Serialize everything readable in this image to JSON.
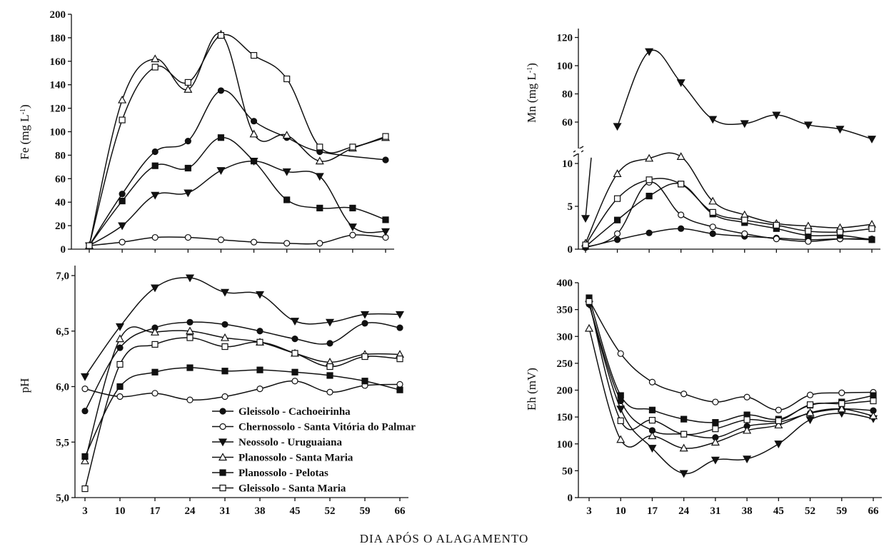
{
  "figure": {
    "xlabel": "DIA APÓS O ALAGAMENTO",
    "x_ticks": [
      "3",
      "10",
      "17",
      "24",
      "31",
      "38",
      "45",
      "52",
      "59",
      "66"
    ],
    "legend": [
      {
        "name": "Gleissolo - Cachoeirinha",
        "marker": "filled-circle"
      },
      {
        "name": "Chernossolo -  Santa Vitória do Palmar",
        "marker": "open-circle"
      },
      {
        "name": "Neossolo - Uruguaiana",
        "marker": "filled-triangle-down"
      },
      {
        "name": "Planossolo - Santa Maria",
        "marker": "open-triangle-up"
      },
      {
        "name": "Planossolo - Pelotas",
        "marker": "filled-square"
      },
      {
        "name": "Gleissolo - Santa Maria",
        "marker": "open-square"
      }
    ]
  },
  "chart_data": [
    {
      "type": "line",
      "panel": "Fe",
      "ylabel": "Fe (mg L",
      "ylim": [
        0,
        200
      ],
      "y_ticks": [
        "0",
        "20",
        "40",
        "60",
        "80",
        "100",
        "120",
        "140",
        "160",
        "180",
        "200"
      ],
      "series": [
        {
          "name": "Gleissolo - Cachoeirinha",
          "x": [
            3,
            10,
            17,
            24,
            31,
            38,
            45,
            52,
            66
          ],
          "y": [
            3,
            47,
            83,
            92,
            135,
            109,
            95,
            83,
            76
          ]
        },
        {
          "name": "Chernossolo -  Santa Vitória do Palmar",
          "x": [
            3,
            10,
            17,
            24,
            31,
            38,
            45,
            52,
            59,
            66
          ],
          "y": [
            3,
            6,
            10,
            10,
            8,
            6,
            5,
            5,
            12,
            10
          ]
        },
        {
          "name": "Neossolo - Uruguaiana",
          "x": [
            3,
            10,
            17,
            24,
            31,
            38,
            45,
            52,
            59,
            66
          ],
          "y": [
            3,
            20,
            46,
            48,
            67,
            75,
            66,
            62,
            19,
            15
          ]
        },
        {
          "name": "Planossolo - Santa Maria",
          "x": [
            3,
            10,
            17,
            24,
            31,
            38,
            45,
            52,
            59,
            66
          ],
          "y": [
            3,
            127,
            162,
            136,
            183,
            98,
            97,
            75,
            86,
            95
          ]
        },
        {
          "name": "Planossolo - Pelotas",
          "x": [
            3,
            10,
            17,
            24,
            31,
            38,
            45,
            52,
            59,
            66
          ],
          "y": [
            3,
            41,
            71,
            69,
            95,
            75,
            42,
            35,
            35,
            25
          ]
        },
        {
          "name": "Gleissolo - Santa Maria",
          "x": [
            3,
            10,
            17,
            24,
            31,
            38,
            45,
            52,
            59,
            66
          ],
          "y": [
            3,
            110,
            155,
            142,
            182,
            165,
            145,
            87,
            87,
            96
          ]
        }
      ]
    },
    {
      "type": "line",
      "panel": "Mn",
      "ylabel": "Mn (mg L",
      "axis_break": true,
      "y_ticks_lower": [
        "0",
        "5",
        "10"
      ],
      "y_ticks_upper": [
        "60",
        "80",
        "100",
        "120"
      ],
      "series": [
        {
          "name": "Gleissolo - Cachoeirinha",
          "x": [
            3,
            10,
            17,
            24,
            31,
            38,
            45,
            52,
            59,
            66
          ],
          "y": [
            0.2,
            1.1,
            1.9,
            2.4,
            1.8,
            1.5,
            1.3,
            1.1,
            1.2,
            1.1
          ]
        },
        {
          "name": "Chernossolo -  Santa Vitória do Palmar",
          "x": [
            3,
            10,
            17,
            24,
            31,
            38,
            45,
            52,
            59,
            66
          ],
          "y": [
            0.2,
            1.8,
            7.8,
            4.0,
            2.6,
            1.8,
            1.2,
            0.9,
            1.2,
            1.2
          ]
        },
        {
          "name": "Neossolo - Uruguaiana",
          "x": [
            3,
            10,
            17,
            24,
            31,
            38,
            45,
            52,
            59,
            66
          ],
          "y": [
            3.6,
            57,
            110,
            88,
            62,
            59,
            65,
            58,
            55,
            48
          ]
        },
        {
          "name": "Planossolo - Santa Maria",
          "x": [
            3,
            10,
            17,
            24,
            31,
            38,
            45,
            52,
            59,
            66
          ],
          "y": [
            0.7,
            8.8,
            10.6,
            10.8,
            5.6,
            4.0,
            3.0,
            2.7,
            2.5,
            2.9
          ]
        },
        {
          "name": "Planossolo - Pelotas",
          "x": [
            3,
            10,
            17,
            24,
            31,
            38,
            45,
            52,
            59,
            66
          ],
          "y": [
            0.3,
            3.4,
            6.2,
            7.6,
            4.1,
            3.1,
            2.4,
            1.6,
            1.6,
            1.1
          ]
        },
        {
          "name": "Gleissolo - Santa Maria",
          "x": [
            3,
            10,
            17,
            24,
            31,
            38,
            45,
            52,
            59,
            66
          ],
          "y": [
            0.5,
            5.9,
            8.1,
            7.6,
            4.3,
            3.4,
            2.8,
            2.1,
            2.0,
            2.4
          ]
        }
      ]
    },
    {
      "type": "line",
      "panel": "pH",
      "ylabel": "pH",
      "ylim": [
        5.0,
        7.1
      ],
      "y_ticks": [
        "5,0",
        "5,5",
        "6,0",
        "6,5",
        "7,0"
      ],
      "series": [
        {
          "name": "Gleissolo - Cachoeirinha",
          "x": [
            3,
            10,
            17,
            24,
            31,
            38,
            45,
            52,
            59,
            66
          ],
          "y": [
            5.78,
            6.35,
            6.53,
            6.58,
            6.56,
            6.5,
            6.43,
            6.39,
            6.57,
            6.53
          ]
        },
        {
          "name": "Chernossolo -  Santa Vitória do Palmar",
          "x": [
            3,
            10,
            17,
            24,
            31,
            38,
            45,
            52,
            59,
            66
          ],
          "y": [
            5.98,
            5.91,
            5.94,
            5.88,
            5.91,
            5.98,
            6.05,
            5.95,
            6.01,
            6.02
          ]
        },
        {
          "name": "Neossolo - Uruguaiana",
          "x": [
            3,
            10,
            17,
            24,
            31,
            38,
            45,
            52,
            59,
            66
          ],
          "y": [
            6.09,
            6.54,
            6.89,
            6.98,
            6.85,
            6.83,
            6.59,
            6.58,
            6.65,
            6.65
          ]
        },
        {
          "name": "Planossolo - Santa Maria",
          "x": [
            3,
            10,
            17,
            24,
            31,
            38,
            45,
            52,
            59,
            66
          ],
          "y": [
            5.33,
            6.43,
            6.49,
            6.5,
            6.44,
            6.4,
            6.3,
            6.22,
            6.29,
            6.29
          ]
        },
        {
          "name": "Planossolo - Pelotas",
          "x": [
            3,
            10,
            17,
            24,
            31,
            38,
            45,
            52,
            59,
            66
          ],
          "y": [
            5.37,
            6.0,
            6.13,
            6.17,
            6.14,
            6.15,
            6.13,
            6.1,
            6.05,
            5.97
          ]
        },
        {
          "name": "Gleissolo - Santa Maria",
          "x": [
            3,
            10,
            17,
            24,
            31,
            38,
            45,
            52,
            59,
            66
          ],
          "y": [
            5.08,
            6.2,
            6.38,
            6.44,
            6.36,
            6.4,
            6.3,
            6.18,
            6.27,
            6.25
          ]
        }
      ]
    },
    {
      "type": "line",
      "panel": "Eh",
      "ylabel": "Eh (mV)",
      "ylim": [
        0,
        400
      ],
      "y_ticks": [
        "0",
        "50",
        "100",
        "150",
        "200",
        "250",
        "300",
        "350",
        "400"
      ],
      "series": [
        {
          "name": "Gleissolo - Cachoeirinha",
          "x": [
            3,
            10,
            17,
            24,
            31,
            38,
            45,
            52,
            59,
            66
          ],
          "y": [
            360,
            180,
            125,
            118,
            112,
            133,
            140,
            157,
            165,
            162
          ]
        },
        {
          "name": "Chernossolo -  Santa Vitória do Palmar",
          "x": [
            3,
            10,
            17,
            24,
            31,
            38,
            45,
            52,
            59,
            66
          ],
          "y": [
            368,
            268,
            215,
            193,
            178,
            187,
            163,
            191,
            195,
            196
          ]
        },
        {
          "name": "Neossolo - Uruguaiana",
          "x": [
            3,
            10,
            17,
            24,
            31,
            38,
            45,
            52,
            59,
            66
          ],
          "y": [
            360,
            165,
            92,
            45,
            70,
            72,
            100,
            145,
            157,
            147
          ]
        },
        {
          "name": "Planossolo - Santa Maria",
          "x": [
            3,
            10,
            17,
            24,
            31,
            38,
            45,
            52,
            59,
            66
          ],
          "y": [
            315,
            108,
            115,
            92,
            103,
            125,
            135,
            158,
            165,
            152
          ]
        },
        {
          "name": "Planossolo - Pelotas",
          "x": [
            3,
            10,
            17,
            24,
            31,
            38,
            45,
            52,
            59,
            66
          ],
          "y": [
            372,
            190,
            163,
            146,
            140,
            154,
            146,
            172,
            178,
            190
          ]
        },
        {
          "name": "Gleissolo - Santa Maria",
          "x": [
            3,
            10,
            17,
            24,
            31,
            38,
            45,
            52,
            59,
            66
          ],
          "y": [
            365,
            143,
            144,
            118,
            128,
            145,
            143,
            173,
            175,
            180
          ]
        }
      ]
    }
  ]
}
